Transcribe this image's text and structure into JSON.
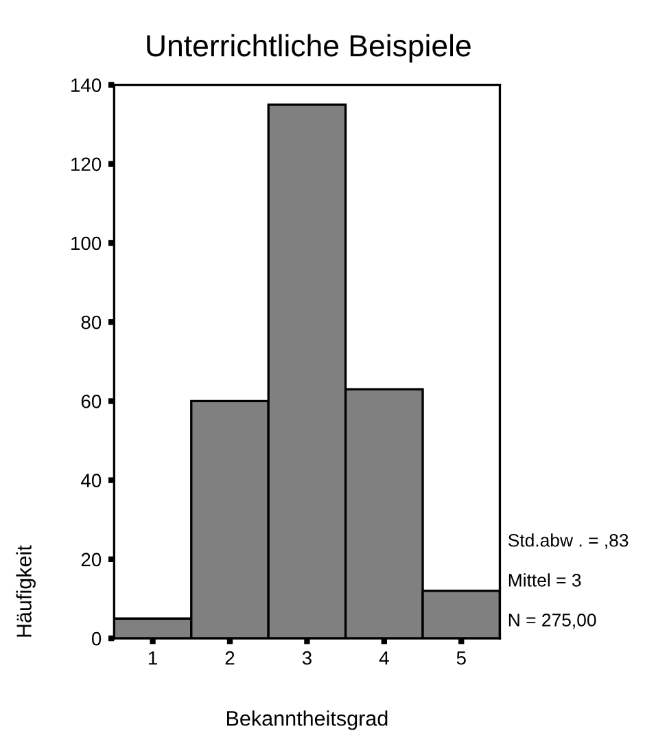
{
  "chart_data": {
    "type": "histogram",
    "title": "Unterrichtliche Beispiele",
    "xlabel": "Bekanntheitsgrad",
    "ylabel": "Häufigkeit",
    "bins": [
      0.5,
      1.5,
      2.5,
      3.5,
      4.5,
      5.5
    ],
    "values": [
      5,
      60,
      135,
      63,
      12
    ],
    "color": "#808080",
    "xlim": [
      0.5,
      5.5
    ],
    "xticks": [
      1,
      2,
      3,
      4,
      5
    ],
    "ylim": [
      0,
      140
    ],
    "yticks": [
      0,
      20,
      40,
      60,
      80,
      100,
      120,
      140
    ],
    "grid": false,
    "annotations": [
      "Std.abw . = ,83",
      "Mittel = 3",
      "N = 275,00"
    ]
  }
}
